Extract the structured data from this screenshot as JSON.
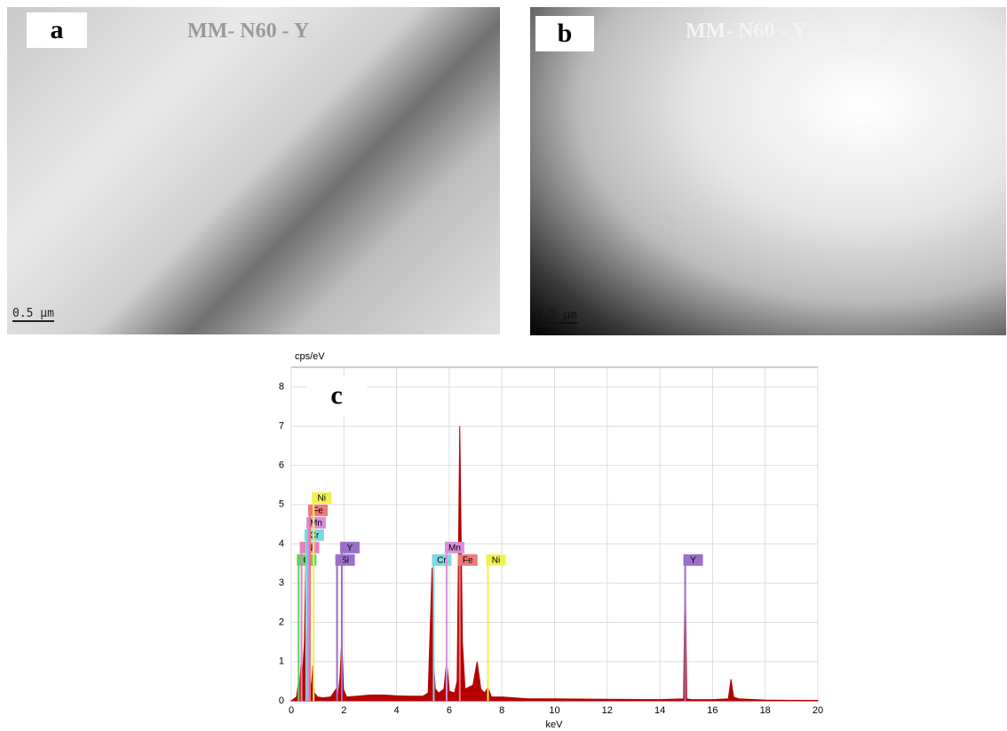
{
  "images": [
    {
      "label": "a",
      "title": "MM- N60 - Y",
      "scale_bar": "0.5 µm"
    },
    {
      "label": "b",
      "title": "MM- N60 - Y",
      "scale_bar": "0.2 µm"
    }
  ],
  "chart_data": {
    "type": "area",
    "panel_label": "c",
    "y_label": "cps/eV",
    "x_label": "keV",
    "color": "#b40000",
    "x": [
      0,
      0.2,
      0.26,
      0.28,
      0.3,
      0.36,
      0.39,
      0.42,
      0.5,
      0.55,
      0.57,
      0.6,
      0.65,
      0.7,
      0.72,
      0.76,
      0.82,
      0.85,
      0.88,
      1.0,
      1.2,
      1.5,
      1.7,
      1.74,
      1.78,
      1.85,
      1.92,
      1.98,
      2.1,
      2.5,
      3,
      3.5,
      4,
      4.5,
      5,
      5.2,
      5.35,
      5.41,
      5.47,
      5.6,
      5.8,
      5.9,
      6.0,
      6.2,
      6.3,
      6.4,
      6.5,
      6.6,
      6.9,
      7.06,
      7.2,
      7.35,
      7.47,
      7.6,
      8,
      9,
      10,
      12,
      14,
      14.9,
      14.96,
      15.02,
      15.2,
      16,
      16.6,
      16.7,
      16.8,
      17,
      18,
      20
    ],
    "values": [
      0,
      0.1,
      0.4,
      0.6,
      0.2,
      0.8,
      1.2,
      0.6,
      1.5,
      3.5,
      2.0,
      1.2,
      2.7,
      0.9,
      0.5,
      0.3,
      0.9,
      0.4,
      0.2,
      0.1,
      0.08,
      0.1,
      0.3,
      0.12,
      0.1,
      0.6,
      1.6,
      0.3,
      0.1,
      0.12,
      0.15,
      0.15,
      0.13,
      0.12,
      0.12,
      0.2,
      3.4,
      1.0,
      0.3,
      0.2,
      0.3,
      1.0,
      0.25,
      0.2,
      0.5,
      7.0,
      1.5,
      0.3,
      0.4,
      1.0,
      0.3,
      0.2,
      0.35,
      0.1,
      0.1,
      0.05,
      0.05,
      0.04,
      0.03,
      0.05,
      3.4,
      0.05,
      0.03,
      0.03,
      0.05,
      0.55,
      0.1,
      0.05,
      0.02,
      0.01
    ],
    "xlim": [
      0,
      20
    ],
    "xticks": [
      0,
      2,
      4,
      6,
      8,
      10,
      12,
      14,
      16,
      18,
      20
    ],
    "ylim": [
      0,
      8.5
    ],
    "yticks": [
      0,
      1,
      2,
      3,
      4,
      5,
      6,
      7,
      8
    ],
    "grid": true,
    "element_lines": [
      {
        "label": "C",
        "x": 0.28,
        "color": "#5fd35f"
      },
      {
        "label": "N",
        "x": 0.39,
        "color": "#e87fbf"
      },
      {
        "label": "Cr",
        "x": 0.57,
        "color": "#7fd8e0"
      },
      {
        "label": "Mn",
        "x": 0.64,
        "color": "#d98fd9"
      },
      {
        "label": "Fe",
        "x": 0.71,
        "color": "#f07878"
      },
      {
        "label": "Ni",
        "x": 0.85,
        "color": "#f0f050"
      },
      {
        "label": "Si",
        "x": 1.74,
        "color": "#9a6fc8"
      },
      {
        "label": "Y",
        "x": 1.92,
        "color": "#9a6fc8"
      },
      {
        "label": "Cr",
        "x": 5.41,
        "color": "#7fd8e0"
      },
      {
        "label": "Mn",
        "x": 5.9,
        "color": "#d98fd9"
      },
      {
        "label": "Fe",
        "x": 6.4,
        "color": "#f07878"
      },
      {
        "label": "Ni",
        "x": 7.47,
        "color": "#f0f050"
      },
      {
        "label": "Y",
        "x": 14.96,
        "color": "#9a6fc8"
      }
    ]
  }
}
